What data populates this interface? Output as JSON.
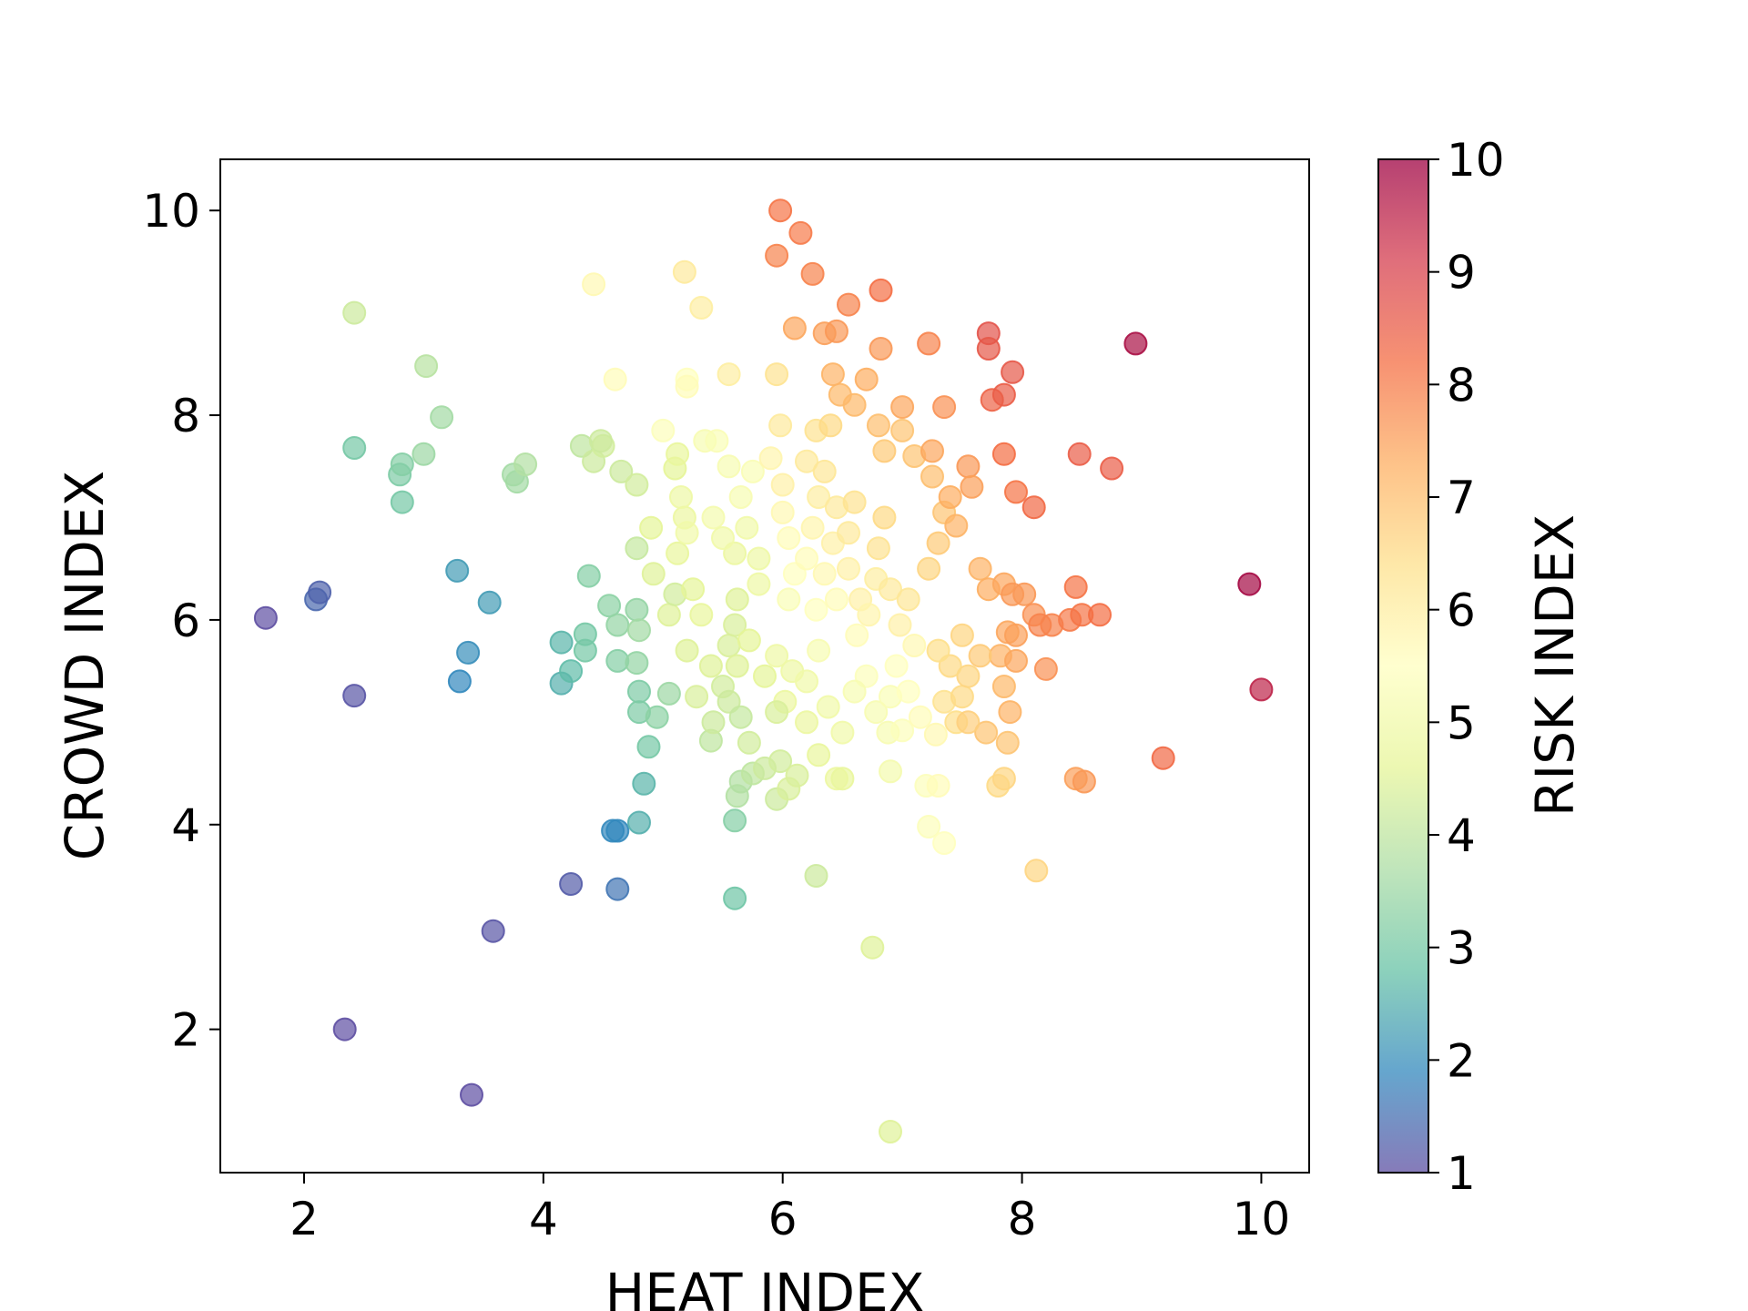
{
  "chart_data": {
    "type": "scatter",
    "title": "",
    "xlabel": "HEAT INDEX",
    "ylabel": "CROWD INDEX",
    "colorbar_label": "RISK INDEX",
    "xlim": [
      1.3,
      10.4
    ],
    "ylim": [
      0.6,
      10.5
    ],
    "clim": [
      1,
      10
    ],
    "x_ticks": [
      2,
      4,
      6,
      8,
      10
    ],
    "y_ticks": [
      2,
      4,
      6,
      8,
      10
    ],
    "colorbar_ticks": [
      1,
      2,
      3,
      4,
      5,
      6,
      7,
      8,
      9,
      10
    ],
    "colormap": [
      "#5e4fa2",
      "#3288bd",
      "#66c2a5",
      "#abdda4",
      "#e6f598",
      "#ffffbf",
      "#fee08b",
      "#fdae61",
      "#f46d43",
      "#d53e4f",
      "#9e0142"
    ],
    "grid": false,
    "legend": "none",
    "point_alpha": 0.7,
    "points": [
      [
        1.68,
        6.02,
        1.0
      ],
      [
        2.1,
        6.2,
        1.4
      ],
      [
        2.13,
        6.27,
        1.3
      ],
      [
        2.42,
        5.26,
        1.1
      ],
      [
        2.34,
        2.0,
        1.0
      ],
      [
        3.4,
        1.36,
        1.0
      ],
      [
        3.58,
        2.96,
        1.1
      ],
      [
        4.23,
        3.42,
        1.2
      ],
      [
        4.62,
        3.37,
        1.6
      ],
      [
        3.28,
        6.48,
        2.2
      ],
      [
        3.55,
        6.17,
        2.2
      ],
      [
        3.37,
        5.68,
        2.0
      ],
      [
        3.3,
        5.4,
        1.9
      ],
      [
        4.58,
        3.94,
        1.9
      ],
      [
        4.62,
        3.94,
        1.9
      ],
      [
        4.8,
        4.02,
        2.5
      ],
      [
        4.84,
        4.4,
        2.6
      ],
      [
        4.88,
        4.76,
        3.0
      ],
      [
        4.15,
        5.78,
        2.6
      ],
      [
        4.15,
        5.38,
        2.5
      ],
      [
        4.23,
        5.5,
        2.7
      ],
      [
        4.35,
        5.86,
        3.0
      ],
      [
        4.35,
        5.7,
        3.0
      ],
      [
        4.38,
        6.43,
        3.2
      ],
      [
        4.55,
        6.14,
        3.3
      ],
      [
        4.62,
        5.95,
        3.4
      ],
      [
        4.62,
        5.6,
        3.2
      ],
      [
        4.78,
        5.58,
        3.4
      ],
      [
        4.8,
        5.3,
        3.1
      ],
      [
        4.8,
        5.1,
        3.1
      ],
      [
        4.95,
        5.05,
        3.3
      ],
      [
        5.05,
        5.28,
        3.5
      ],
      [
        4.78,
        6.1,
        3.4
      ],
      [
        4.8,
        5.9,
        3.6
      ],
      [
        5.6,
        3.28,
        2.9
      ],
      [
        5.6,
        4.04,
        3.2
      ],
      [
        6.28,
        3.5,
        4.2
      ],
      [
        6.75,
        2.8,
        4.5
      ],
      [
        6.9,
        1.0,
        4.5
      ],
      [
        2.42,
        7.68,
        3.0
      ],
      [
        2.8,
        7.42,
        3.1
      ],
      [
        2.82,
        7.52,
        3.2
      ],
      [
        2.82,
        7.15,
        3.0
      ],
      [
        3.0,
        7.62,
        3.5
      ],
      [
        3.15,
        7.98,
        3.6
      ],
      [
        3.02,
        8.48,
        3.9
      ],
      [
        2.42,
        9.0,
        4.2
      ],
      [
        3.75,
        7.42,
        3.6
      ],
      [
        3.78,
        7.35,
        3.6
      ],
      [
        3.85,
        7.52,
        3.8
      ],
      [
        4.32,
        7.7,
        4.0
      ],
      [
        4.42,
        7.55,
        4.2
      ],
      [
        4.5,
        7.7,
        4.3
      ],
      [
        4.48,
        7.75,
        4.2
      ],
      [
        4.65,
        7.45,
        4.2
      ],
      [
        4.78,
        7.32,
        4.3
      ],
      [
        4.78,
        6.7,
        4.1
      ],
      [
        4.9,
        6.9,
        4.6
      ],
      [
        4.92,
        6.45,
        4.5
      ],
      [
        5.05,
        6.05,
        4.5
      ],
      [
        5.1,
        6.25,
        4.3
      ],
      [
        5.12,
        6.65,
        4.7
      ],
      [
        5.18,
        7.0,
        4.8
      ],
      [
        5.1,
        7.48,
        4.6
      ],
      [
        5.12,
        7.62,
        4.7
      ],
      [
        5.15,
        7.2,
        4.9
      ],
      [
        5.2,
        6.85,
        5.0
      ],
      [
        5.2,
        5.7,
        4.5
      ],
      [
        5.25,
        6.3,
        4.6
      ],
      [
        5.32,
        6.05,
        4.7
      ],
      [
        5.28,
        5.25,
        4.4
      ],
      [
        5.4,
        5.55,
        4.5
      ],
      [
        5.4,
        4.82,
        4.0
      ],
      [
        5.42,
        5.0,
        4.2
      ],
      [
        5.5,
        5.35,
        4.3
      ],
      [
        5.55,
        5.2,
        4.2
      ],
      [
        5.6,
        5.95,
        4.4
      ],
      [
        5.62,
        6.2,
        4.5
      ],
      [
        5.65,
        5.05,
        4.1
      ],
      [
        5.65,
        4.42,
        3.8
      ],
      [
        5.62,
        4.28,
        3.8
      ],
      [
        5.72,
        4.8,
        4.3
      ],
      [
        5.75,
        4.5,
        4.0
      ],
      [
        5.85,
        4.55,
        4.2
      ],
      [
        5.95,
        4.25,
        4.2
      ],
      [
        5.98,
        4.62,
        4.3
      ],
      [
        6.05,
        4.35,
        4.4
      ],
      [
        6.12,
        4.48,
        4.4
      ],
      [
        5.55,
        5.75,
        4.4
      ],
      [
        5.62,
        5.55,
        4.5
      ],
      [
        5.72,
        5.8,
        4.6
      ],
      [
        5.8,
        6.35,
        4.9
      ],
      [
        5.85,
        5.45,
        4.6
      ],
      [
        5.95,
        5.65,
        4.9
      ],
      [
        6.02,
        5.2,
        4.8
      ],
      [
        6.08,
        5.5,
        4.9
      ],
      [
        5.95,
        5.1,
        4.4
      ],
      [
        6.2,
        5.0,
        4.8
      ],
      [
        6.3,
        4.68,
        4.7
      ],
      [
        6.45,
        4.45,
        4.8
      ],
      [
        6.5,
        4.45,
        4.7
      ],
      [
        5.35,
        7.75,
        5.2
      ],
      [
        5.45,
        7.75,
        5.3
      ],
      [
        5.55,
        7.5,
        5.2
      ],
      [
        5.65,
        7.2,
        5.2
      ],
      [
        5.7,
        6.9,
        5.0
      ],
      [
        5.8,
        6.6,
        4.9
      ],
      [
        5.6,
        6.65,
        4.8
      ],
      [
        5.75,
        7.45,
        5.3
      ],
      [
        5.42,
        7.0,
        5.1
      ],
      [
        5.5,
        6.8,
        5.0
      ],
      [
        5.0,
        7.85,
        5.4
      ],
      [
        5.2,
        8.35,
        5.5
      ],
      [
        5.2,
        8.28,
        5.6
      ],
      [
        4.6,
        8.35,
        5.6
      ],
      [
        4.42,
        9.28,
        5.7
      ],
      [
        5.18,
        9.4,
        6.1
      ],
      [
        5.32,
        9.05,
        6.0
      ],
      [
        5.55,
        8.4,
        6.0
      ],
      [
        5.95,
        8.4,
        6.3
      ],
      [
        5.98,
        7.9,
        6.1
      ],
      [
        5.9,
        7.58,
        5.8
      ],
      [
        6.0,
        7.32,
        5.9
      ],
      [
        6.0,
        7.05,
        5.7
      ],
      [
        6.05,
        6.8,
        5.6
      ],
      [
        6.1,
        6.45,
        5.5
      ],
      [
        6.05,
        6.2,
        5.3
      ],
      [
        6.2,
        6.6,
        5.6
      ],
      [
        6.25,
        6.9,
        5.8
      ],
      [
        6.3,
        7.2,
        6.0
      ],
      [
        6.2,
        7.55,
        6.1
      ],
      [
        6.28,
        7.85,
        6.3
      ],
      [
        6.4,
        7.9,
        6.5
      ],
      [
        6.35,
        7.45,
        6.2
      ],
      [
        6.45,
        7.1,
        6.1
      ],
      [
        6.42,
        6.75,
        5.9
      ],
      [
        6.35,
        6.45,
        5.7
      ],
      [
        6.28,
        6.1,
        5.5
      ],
      [
        6.45,
        6.2,
        5.6
      ],
      [
        6.55,
        6.5,
        5.9
      ],
      [
        6.55,
        6.85,
        6.1
      ],
      [
        6.6,
        7.15,
        6.3
      ],
      [
        6.65,
        6.2,
        5.9
      ],
      [
        6.62,
        5.85,
        5.6
      ],
      [
        6.72,
        6.05,
        5.8
      ],
      [
        6.78,
        6.4,
        6.0
      ],
      [
        6.8,
        6.7,
        6.3
      ],
      [
        6.85,
        7.0,
        6.5
      ],
      [
        6.9,
        6.3,
        6.1
      ],
      [
        6.98,
        5.95,
        5.9
      ],
      [
        7.05,
        6.2,
        6.2
      ],
      [
        6.7,
        5.45,
        5.4
      ],
      [
        6.78,
        5.1,
        5.2
      ],
      [
        6.9,
        5.25,
        5.3
      ],
      [
        6.88,
        4.9,
        5.2
      ],
      [
        6.95,
        5.55,
        5.5
      ],
      [
        7.05,
        5.3,
        5.5
      ],
      [
        7.0,
        4.92,
        5.4
      ],
      [
        7.1,
        5.75,
        5.7
      ],
      [
        7.15,
        5.05,
        5.6
      ],
      [
        7.2,
        4.38,
        5.4
      ],
      [
        7.22,
        3.98,
        5.4
      ],
      [
        7.35,
        3.82,
        5.5
      ],
      [
        7.3,
        4.38,
        5.6
      ],
      [
        7.28,
        4.88,
        5.7
      ],
      [
        6.9,
        4.52,
        5.1
      ],
      [
        6.5,
        4.9,
        5.0
      ],
      [
        6.6,
        5.3,
        5.2
      ],
      [
        6.3,
        5.7,
        5.2
      ],
      [
        6.2,
        5.4,
        5.0
      ],
      [
        6.38,
        5.15,
        5.0
      ],
      [
        7.35,
        5.2,
        6.3
      ],
      [
        7.45,
        5.0,
        6.4
      ],
      [
        7.5,
        5.25,
        6.5
      ],
      [
        7.55,
        5.45,
        6.6
      ],
      [
        7.4,
        5.55,
        6.5
      ],
      [
        7.3,
        5.7,
        6.4
      ],
      [
        7.22,
        6.5,
        6.6
      ],
      [
        7.3,
        6.75,
        6.8
      ],
      [
        7.35,
        7.05,
        6.9
      ],
      [
        7.25,
        7.4,
        7.0
      ],
      [
        7.1,
        7.6,
        6.9
      ],
      [
        7.0,
        7.85,
        6.9
      ],
      [
        6.85,
        7.65,
        6.8
      ],
      [
        6.8,
        7.9,
        7.0
      ],
      [
        6.6,
        8.1,
        7.1
      ],
      [
        6.7,
        8.35,
        7.3
      ],
      [
        6.48,
        8.2,
        7.1
      ],
      [
        6.42,
        8.4,
        7.2
      ],
      [
        6.35,
        8.8,
        7.5
      ],
      [
        6.1,
        8.85,
        7.4
      ],
      [
        6.45,
        8.82,
        7.6
      ],
      [
        6.82,
        8.65,
        7.6
      ],
      [
        7.0,
        8.08,
        7.4
      ],
      [
        7.22,
        8.7,
        7.9
      ],
      [
        7.35,
        8.08,
        7.7
      ],
      [
        6.55,
        9.08,
        7.9
      ],
      [
        6.25,
        9.38,
        7.9
      ],
      [
        5.95,
        9.56,
        7.9
      ],
      [
        6.15,
        9.78,
        8.0
      ],
      [
        5.98,
        10.0,
        8.1
      ],
      [
        6.82,
        9.22,
        8.2
      ],
      [
        7.25,
        7.65,
        7.4
      ],
      [
        7.4,
        7.2,
        7.3
      ],
      [
        7.45,
        6.92,
        7.2
      ],
      [
        7.55,
        7.5,
        7.6
      ],
      [
        7.58,
        7.3,
        7.5
      ],
      [
        7.65,
        6.5,
        7.2
      ],
      [
        7.72,
        6.3,
        7.3
      ],
      [
        7.85,
        6.35,
        7.4
      ],
      [
        7.92,
        6.25,
        7.6
      ],
      [
        7.82,
        5.65,
        7.2
      ],
      [
        7.88,
        5.88,
        7.4
      ],
      [
        7.95,
        5.85,
        7.5
      ],
      [
        7.95,
        5.6,
        7.4
      ],
      [
        8.02,
        6.25,
        7.6
      ],
      [
        8.1,
        6.05,
        7.7
      ],
      [
        8.15,
        5.95,
        7.9
      ],
      [
        8.25,
        5.95,
        7.9
      ],
      [
        7.85,
        5.35,
        7.1
      ],
      [
        7.9,
        5.1,
        7.2
      ],
      [
        7.7,
        4.9,
        6.9
      ],
      [
        7.88,
        4.8,
        6.9
      ],
      [
        7.65,
        5.65,
        6.8
      ],
      [
        7.55,
        5.0,
        6.7
      ],
      [
        7.5,
        5.85,
        6.6
      ],
      [
        7.8,
        4.38,
        6.5
      ],
      [
        7.85,
        4.45,
        6.6
      ],
      [
        8.12,
        3.55,
        6.6
      ],
      [
        8.45,
        4.45,
        7.5
      ],
      [
        8.52,
        4.42,
        7.6
      ],
      [
        8.2,
        5.52,
        7.7
      ],
      [
        8.4,
        6.0,
        8.0
      ],
      [
        8.5,
        6.05,
        8.1
      ],
      [
        8.65,
        6.05,
        8.2
      ],
      [
        8.45,
        6.32,
        8.1
      ],
      [
        7.85,
        7.62,
        8.2
      ],
      [
        7.95,
        7.25,
        8.1
      ],
      [
        8.1,
        7.1,
        8.3
      ],
      [
        8.48,
        7.62,
        8.5
      ],
      [
        8.75,
        7.48,
        8.5
      ],
      [
        7.75,
        8.15,
        8.4
      ],
      [
        7.85,
        8.2,
        8.5
      ],
      [
        7.92,
        8.42,
        8.6
      ],
      [
        7.72,
        8.8,
        8.7
      ],
      [
        7.72,
        8.65,
        8.6
      ],
      [
        9.18,
        4.65,
        8.3
      ],
      [
        8.95,
        8.7,
        9.8
      ],
      [
        9.9,
        6.35,
        9.9
      ],
      [
        10.0,
        5.32,
        9.5
      ]
    ]
  }
}
